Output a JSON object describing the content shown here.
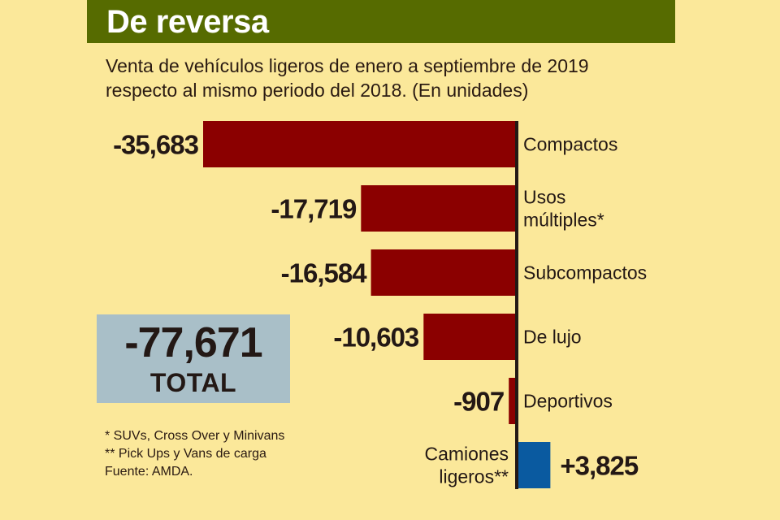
{
  "header": {
    "title": "De reversa",
    "subtitle_lines": [
      "Venta de vehículos ligeros de enero a septiembre de 2019",
      "respecto al mismo periodo del 2018. (En unidades)"
    ]
  },
  "colors": {
    "header_band": "#566b00",
    "background": "#fbe89a",
    "negative_bar": "#8b0000",
    "positive_bar": "#0a5aa0",
    "total_box": "#a9bfc8",
    "axis": "#231815"
  },
  "total": {
    "value": "-77,671",
    "label": "TOTAL"
  },
  "notes": [
    "* SUVs, Cross Over y Minivans",
    "** Pick Ups y Vans de carga",
    "Fuente: AMDA."
  ],
  "chart_data": {
    "type": "bar",
    "orientation": "horizontal",
    "title": "De reversa",
    "subtitle": "Venta de vehículos ligeros de enero a septiembre de 2019 respecto al mismo periodo del 2018. (En unidades)",
    "xlabel": "",
    "ylabel": "",
    "grid": false,
    "legend": "none",
    "categories": [
      [
        "Compactos"
      ],
      [
        "Usos",
        "múltiples*"
      ],
      [
        "Subcompactos"
      ],
      [
        "De lujo"
      ],
      [
        "Deportivos"
      ],
      [
        "Camiones",
        "ligeros**"
      ]
    ],
    "values": [
      -35683,
      -17719,
      -16584,
      -10603,
      -907,
      3825
    ],
    "value_labels": [
      "-35,683",
      "-17,719",
      "-16,584",
      "-10,603",
      "-907",
      "+3,825"
    ],
    "xlim": [
      -35683,
      3825
    ],
    "total": -77671
  }
}
